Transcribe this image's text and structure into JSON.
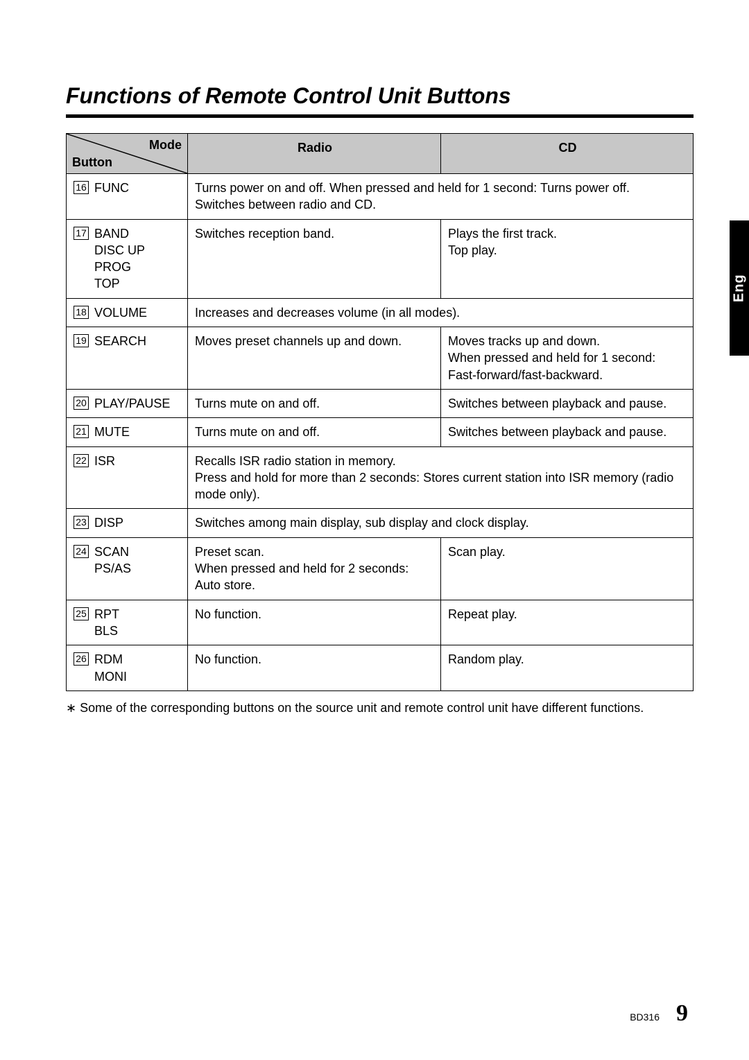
{
  "title": "Functions of Remote Control Unit Buttons",
  "headers": {
    "mode": "Mode",
    "button": "Button",
    "radio": "Radio",
    "cd": "CD"
  },
  "rows": [
    {
      "num": "16",
      "names": [
        "FUNC"
      ],
      "span": true,
      "radio": "Turns power on and off. When pressed and held for 1 second: Turns power off.\nSwitches between radio and CD."
    },
    {
      "num": "17",
      "names": [
        "BAND",
        "DISC UP",
        "PROG",
        "TOP"
      ],
      "radio": "Switches reception band.",
      "cd": "Plays the first track.\nTop play."
    },
    {
      "num": "18",
      "names": [
        "VOLUME"
      ],
      "span": true,
      "radio": "Increases and decreases volume (in all modes)."
    },
    {
      "num": "19",
      "names": [
        "SEARCH"
      ],
      "radio": "Moves preset channels up and down.",
      "cd": "Moves tracks up and down.\nWhen pressed and held for 1 second:\nFast-forward/fast-backward."
    },
    {
      "num": "20",
      "names": [
        "PLAY/PAUSE"
      ],
      "radio": "Turns mute on and off.",
      "cd": "Switches between playback and pause."
    },
    {
      "num": "21",
      "names": [
        "MUTE"
      ],
      "radio": "Turns mute on and off.",
      "cd": "Switches between playback and pause."
    },
    {
      "num": "22",
      "names": [
        "ISR"
      ],
      "span": true,
      "radio": "Recalls ISR radio station in memory.\nPress and hold for more than 2 seconds: Stores current station into ISR memory (radio mode only)."
    },
    {
      "num": "23",
      "names": [
        "DISP"
      ],
      "span": true,
      "radio": "Switches among main display, sub display and clock display."
    },
    {
      "num": "24",
      "names": [
        "SCAN",
        "PS/AS"
      ],
      "radio": "Preset scan.\nWhen pressed and held for 2 seconds:\nAuto store.",
      "cd": "Scan play."
    },
    {
      "num": "25",
      "names": [
        "RPT",
        "BLS"
      ],
      "radio": "No function.",
      "cd": "Repeat play."
    },
    {
      "num": "26",
      "names": [
        "RDM",
        "MONI"
      ],
      "radio": "No function.",
      "cd": "Random play."
    }
  ],
  "footnote_marker": "∗",
  "footnote": "Some of the corresponding buttons on the source unit and remote control unit have different functions.",
  "side_tab": "Eng",
  "footer": {
    "model": "BD316",
    "page": "9"
  },
  "colors": {
    "header_bg": "#c7c7c7",
    "text": "#000000",
    "bg": "#ffffff"
  }
}
